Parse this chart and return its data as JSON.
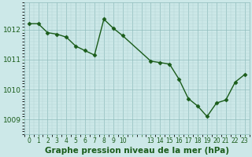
{
  "x_data": [
    0,
    1,
    2,
    3,
    4,
    5,
    6,
    7,
    8,
    9,
    10,
    13,
    14,
    15,
    16,
    17,
    18,
    19,
    20,
    21,
    22,
    23
  ],
  "y_data": [
    1012.2,
    1012.2,
    1011.9,
    1011.85,
    1011.75,
    1011.45,
    1011.3,
    1011.15,
    1012.35,
    1012.05,
    1011.8,
    1010.95,
    1010.9,
    1010.85,
    1010.35,
    1009.7,
    1009.45,
    1009.1,
    1009.55,
    1009.65,
    1010.25,
    1010.5
  ],
  "line_color": "#1a5c1a",
  "marker": "D",
  "markersize": 2.5,
  "linewidth": 1.0,
  "bg_color": "#cce8e8",
  "grid_minor_color": "#b0d4d4",
  "grid_major_color": "#90bcbc",
  "text_color": "#1a5c1a",
  "xlabel": "Graphe pression niveau de la mer (hPa)",
  "xlabel_fontsize": 7.5,
  "ylim": [
    1008.5,
    1012.9
  ],
  "yticks": [
    1009,
    1010,
    1011,
    1012
  ],
  "x_tick_labels": [
    "0",
    "1",
    "2",
    "3",
    "4",
    "5",
    "6",
    "7",
    "8",
    "9",
    "10",
    "",
    "13",
    "14",
    "15",
    "16",
    "17",
    "18",
    "19",
    "20",
    "21",
    "22",
    "23"
  ],
  "xlim": [
    -0.5,
    23.5
  ],
  "axis_label_color": "#1a5c1a",
  "ylabel_fontsize": 6.5,
  "xlabel_bold": true
}
